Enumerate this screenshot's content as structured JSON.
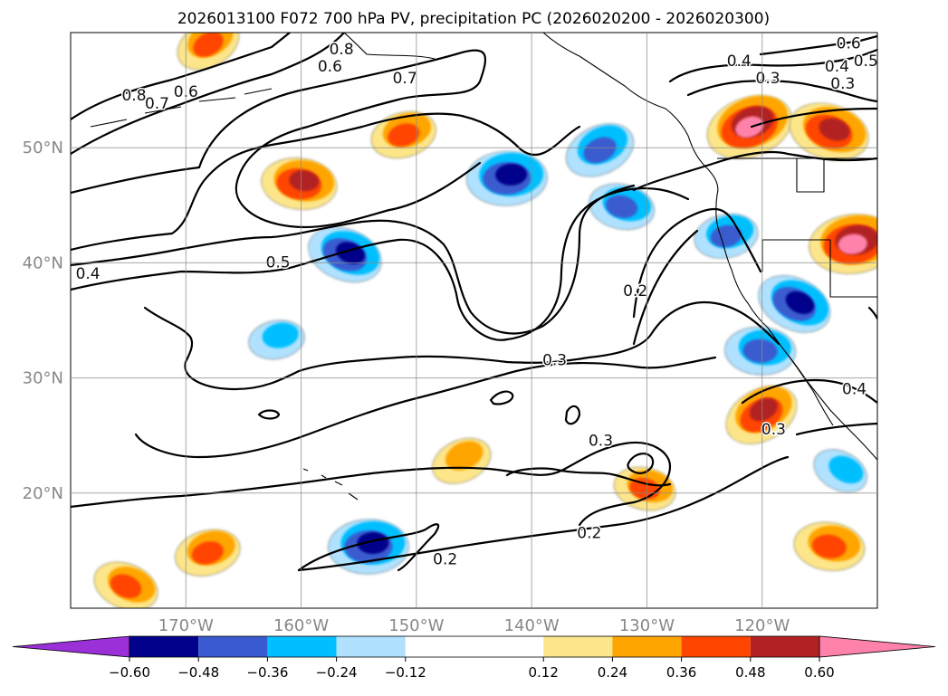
{
  "chart_data": {
    "type": "heatmap",
    "title": "2026013100 F072 700 hPa PV, precipitation PC (2026020200 - 2026020300)",
    "map_extent": {
      "lon": [
        -180,
        -110
      ],
      "lat": [
        10,
        60
      ]
    },
    "x_ticks": [
      {
        "value": -170,
        "label": "170°W"
      },
      {
        "value": -160,
        "label": "160°W"
      },
      {
        "value": -150,
        "label": "150°W"
      },
      {
        "value": -140,
        "label": "140°W"
      },
      {
        "value": -130,
        "label": "130°W"
      },
      {
        "value": -120,
        "label": "120°W"
      }
    ],
    "y_ticks": [
      {
        "value": 50,
        "label": "50°N"
      },
      {
        "value": 40,
        "label": "40°N"
      },
      {
        "value": 30,
        "label": "30°N"
      },
      {
        "value": 20,
        "label": "20°N"
      }
    ],
    "grid": true,
    "colorbar": {
      "orientation": "horizontal",
      "extend": "both",
      "bounds": [
        -0.72,
        -0.6,
        -0.48,
        -0.36,
        -0.24,
        -0.12,
        0.12,
        0.24,
        0.36,
        0.48,
        0.6,
        0.72
      ],
      "colors": [
        "#9b30d9",
        "#00008b",
        "#3a5bcf",
        "#00bfff",
        "#b0e2ff",
        "#ffffff",
        "#fde68a",
        "#ffa500",
        "#ff4500",
        "#b22222",
        "#ff82ab"
      ],
      "tick_values": [
        -0.6,
        -0.48,
        -0.36,
        -0.24,
        -0.12,
        0.12,
        0.24,
        0.36,
        0.48,
        0.6
      ],
      "tick_labels": [
        "−0.60",
        "−0.48",
        "−0.36",
        "−0.24",
        "−0.12",
        "0.12",
        "0.24",
        "0.36",
        "0.48",
        "0.60"
      ]
    },
    "precip_anomaly_blobs": [
      {
        "lon": -168,
        "lat": 59.2,
        "value": 0.4
      },
      {
        "lon": -160,
        "lat": 47.0,
        "value": 0.5
      },
      {
        "lon": -151,
        "lat": 51.3,
        "value": 0.4
      },
      {
        "lon": -156,
        "lat": 40.8,
        "value": -0.5
      },
      {
        "lon": -142,
        "lat": 47.5,
        "value": -0.55
      },
      {
        "lon": -134,
        "lat": 50.0,
        "value": -0.45
      },
      {
        "lon": -132,
        "lat": 45.0,
        "value": -0.4
      },
      {
        "lon": -123,
        "lat": 42.5,
        "value": -0.38
      },
      {
        "lon": -117,
        "lat": 36.5,
        "value": -0.5
      },
      {
        "lon": -120,
        "lat": 32.5,
        "value": -0.45
      },
      {
        "lon": -121,
        "lat": 52.0,
        "value": 0.62
      },
      {
        "lon": -114,
        "lat": 51.5,
        "value": 0.55
      },
      {
        "lon": -112,
        "lat": 41.8,
        "value": 0.62
      },
      {
        "lon": -120,
        "lat": 27.0,
        "value": 0.5
      },
      {
        "lon": -114,
        "lat": 15.5,
        "value": 0.45
      },
      {
        "lon": -168,
        "lat": 15.0,
        "value": 0.4
      },
      {
        "lon": -175,
        "lat": 12.0,
        "value": 0.4
      },
      {
        "lon": -154,
        "lat": 15.5,
        "value": -0.55
      },
      {
        "lon": -146,
        "lat": 23.0,
        "value": 0.35
      },
      {
        "lon": -130,
        "lat": 20.5,
        "value": 0.36
      },
      {
        "lon": -162,
        "lat": 33.5,
        "value": -0.3
      },
      {
        "lon": -113,
        "lat": 22.0,
        "value": -0.3
      }
    ],
    "pv_contour_labels": [
      {
        "lon": -174.5,
        "lat": 54.5,
        "text": "0.8"
      },
      {
        "lon": -172.5,
        "lat": 53.8,
        "text": "0.7"
      },
      {
        "lon": -170.0,
        "lat": 54.8,
        "text": "0.6"
      },
      {
        "lon": -157.5,
        "lat": 57.0,
        "text": "0.6"
      },
      {
        "lon": -151.0,
        "lat": 56.0,
        "text": "0.7"
      },
      {
        "lon": -156.5,
        "lat": 58.5,
        "text": "0.8"
      },
      {
        "lon": -178.5,
        "lat": 39.0,
        "text": "0.4"
      },
      {
        "lon": -162.0,
        "lat": 40.0,
        "text": "0.5"
      },
      {
        "lon": -138.0,
        "lat": 31.5,
        "text": "0.3"
      },
      {
        "lon": -131.0,
        "lat": 37.5,
        "text": "0.2"
      },
      {
        "lon": -122.0,
        "lat": 57.5,
        "text": "0.4"
      },
      {
        "lon": -119.5,
        "lat": 56.0,
        "text": "0.3"
      },
      {
        "lon": -112.5,
        "lat": 59.0,
        "text": "0.6"
      },
      {
        "lon": -111.0,
        "lat": 57.5,
        "text": "0.5"
      },
      {
        "lon": -113.5,
        "lat": 57.0,
        "text": "0.4"
      },
      {
        "lon": -113.0,
        "lat": 55.5,
        "text": "0.3"
      },
      {
        "lon": -112.0,
        "lat": 29.0,
        "text": "0.4"
      },
      {
        "lon": -119.0,
        "lat": 25.5,
        "text": "0.3"
      },
      {
        "lon": -134.0,
        "lat": 24.5,
        "text": "0.3"
      },
      {
        "lon": -135.0,
        "lat": 16.5,
        "text": "0.2"
      },
      {
        "lon": -147.5,
        "lat": 14.2,
        "text": "0.2"
      }
    ]
  }
}
